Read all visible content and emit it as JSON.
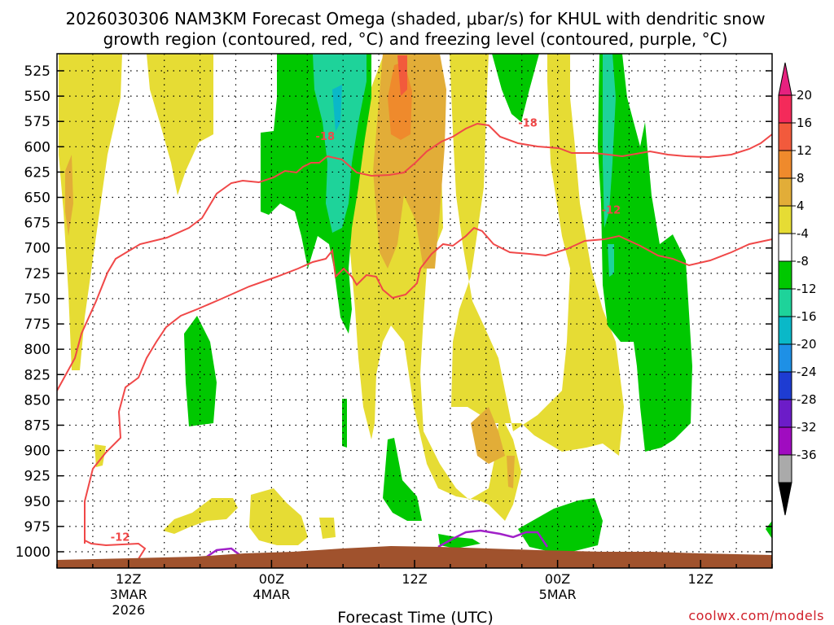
{
  "chart_data": {
    "type": "heatmap",
    "title_line1": "2026030306 NAM3KM Forecast Omega (shaded, μbar/s) for KHUL with dendritic snow",
    "title_line2": "growth region (contoured, red, °C) and freezing level (contoured, purple, °C)",
    "xlabel": "Forecast Time (UTC)",
    "credit": "coolwx.com/models",
    "y_axis": {
      "unit": "hPa",
      "direction": "reversed",
      "ticks": [
        "525",
        "550",
        "575",
        "600",
        "625",
        "650",
        "675",
        "700",
        "725",
        "750",
        "775",
        "800",
        "825",
        "850",
        "875",
        "900",
        "925",
        "950",
        "975",
        "1000"
      ]
    },
    "x_axis": {
      "unit": "forecast hour",
      "range": [
        0,
        60
      ],
      "ticks": [
        {
          "hour": 6,
          "line1": "12Z",
          "line2": "3MAR",
          "line3": "2026"
        },
        {
          "hour": 18,
          "line1": "00Z",
          "line2": "4MAR",
          "line3": ""
        },
        {
          "hour": 30,
          "line1": "12Z",
          "line2": "",
          "line3": ""
        },
        {
          "hour": 42,
          "line1": "00Z",
          "line2": "5MAR",
          "line3": ""
        },
        {
          "hour": 54,
          "line1": "12Z",
          "line2": "",
          "line3": ""
        }
      ]
    },
    "colorbar": {
      "labels": [
        "20",
        "16",
        "12",
        "8",
        "4",
        "-4",
        "-8",
        "-12",
        "-16",
        "-20",
        "-24",
        "-28",
        "-32",
        "-36"
      ],
      "colors": [
        "#f42a5a",
        "#f25a3c",
        "#ef8a2c",
        "#e2ad38",
        "#e6dc34",
        "#ffffff",
        "#00c800",
        "#1ed39a",
        "#0ab8c8",
        "#1e90e6",
        "#1e3cd2",
        "#6c1cc8",
        "#a00cc0",
        "#aaaaaa"
      ],
      "top_arrow_color": "#e6217f",
      "bottom_arrow_color": "#000000"
    },
    "omega_fields": [
      {
        "value": 4,
        "label": "upward motion 4-8 μbar/s (yellow)"
      },
      {
        "value": 8,
        "label": "upward motion 8-12 μbar/s (gold)"
      },
      {
        "value": 12,
        "label": "upward motion 12-16 μbar/s (orange)"
      },
      {
        "value": 16,
        "label": "upward motion 16-20 μbar/s (red)"
      },
      {
        "value": -4,
        "label": "downward motion -4 to -8 μbar/s (green)"
      },
      {
        "value": -8,
        "label": "downward motion -8 to -12 μbar/s (teal)"
      }
    ],
    "contours": [
      {
        "name": "dendritic -12C isotherm",
        "color": "#f04848",
        "label": "-12"
      },
      {
        "name": "dendritic -18C isotherm",
        "color": "#f04848",
        "label": "-18"
      },
      {
        "name": "freezing level 0C",
        "color": "#a020c8",
        "label": ""
      }
    ],
    "contour_labels": [
      {
        "text": "-18",
        "hour": 22.5,
        "hPa": 590
      },
      {
        "text": "-18",
        "hour": 39.5,
        "hPa": 577
      },
      {
        "text": "-12",
        "hour": 46.5,
        "hPa": 663
      },
      {
        "text": "-12",
        "hour": 5.3,
        "hPa": 986
      }
    ],
    "terrain": {
      "color": "#a0522d",
      "label": "surface"
    }
  }
}
